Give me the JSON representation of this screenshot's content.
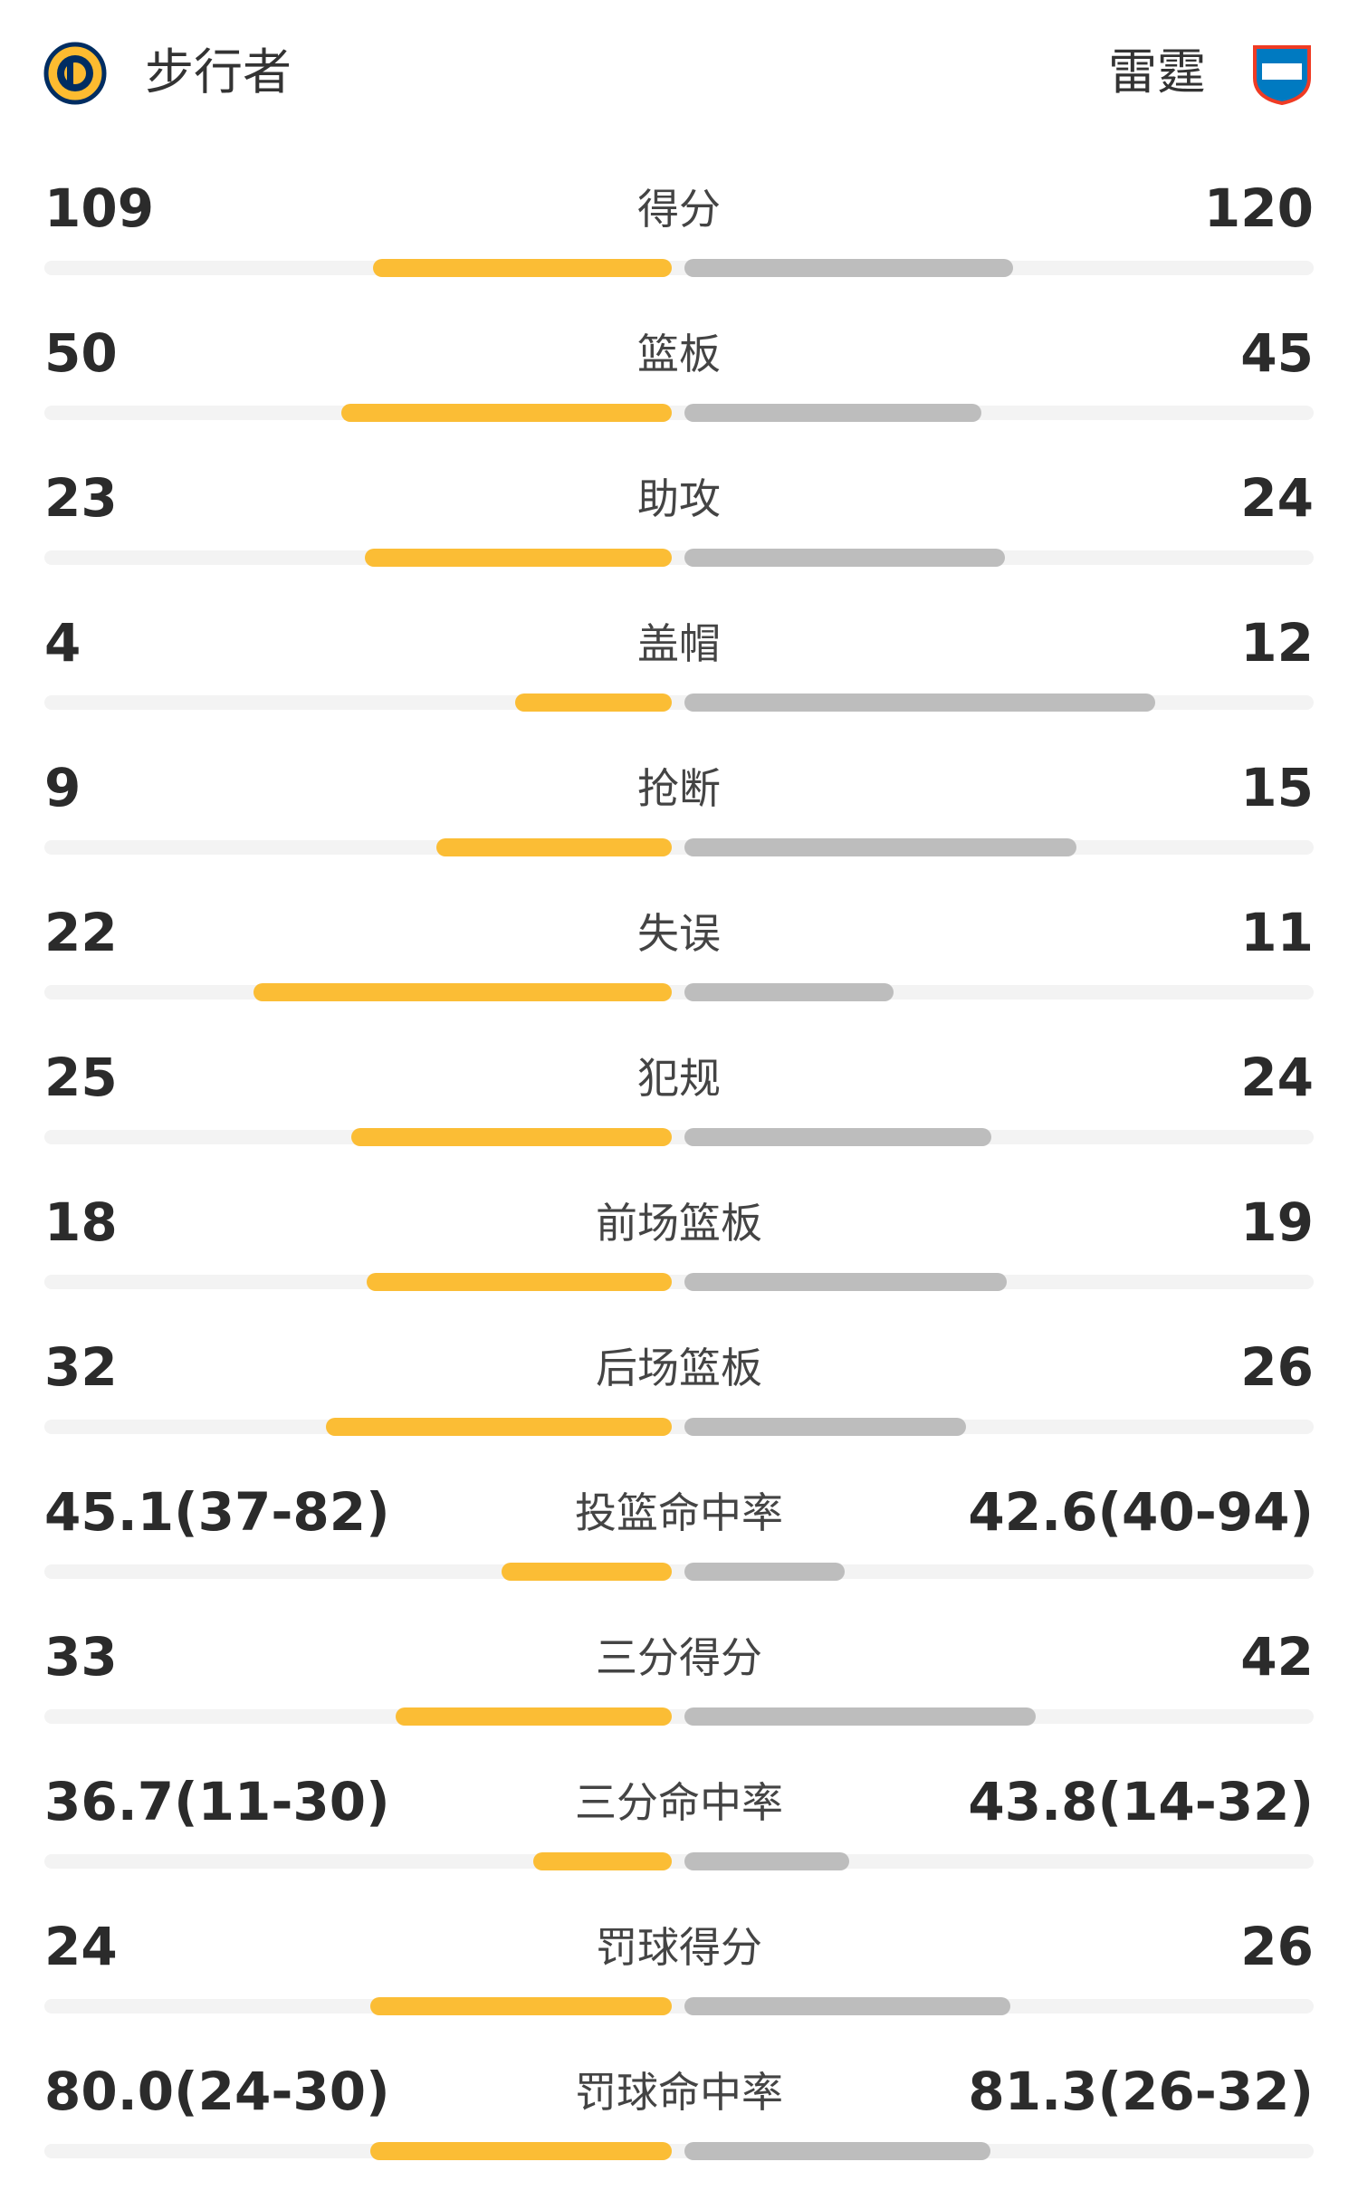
{
  "header": {
    "home_team": "步行者",
    "away_team": "雷霆"
  },
  "stats": [
    {
      "label": "得分",
      "home": 109,
      "away": 120
    },
    {
      "label": "篮板",
      "home": 50,
      "away": 45
    },
    {
      "label": "助攻",
      "home": 23,
      "away": 24
    },
    {
      "label": "盖帽",
      "home": 4,
      "away": 12
    },
    {
      "label": "抢断",
      "home": 9,
      "away": 15
    },
    {
      "label": "失误",
      "home": 22,
      "away": 11
    },
    {
      "label": "犯规",
      "home": 25,
      "away": 24
    },
    {
      "label": "前场篮板",
      "home": 18,
      "away": 19
    },
    {
      "label": "后场篮板",
      "home": 32,
      "away": 26
    },
    {
      "label": "投篮命中率",
      "home": "45.1(37-82)",
      "away": "42.6(40-94)"
    },
    {
      "label": "三分得分",
      "home": 33,
      "away": 42
    },
    {
      "label": "三分命中率",
      "home": "36.7(11-30)",
      "away": "43.8(14-32)"
    },
    {
      "label": "罚球得分",
      "home": 24,
      "away": 26
    },
    {
      "label": "罚球命中率",
      "home": "80.0(24-30)",
      "away": "81.3(26-32)"
    }
  ]
}
